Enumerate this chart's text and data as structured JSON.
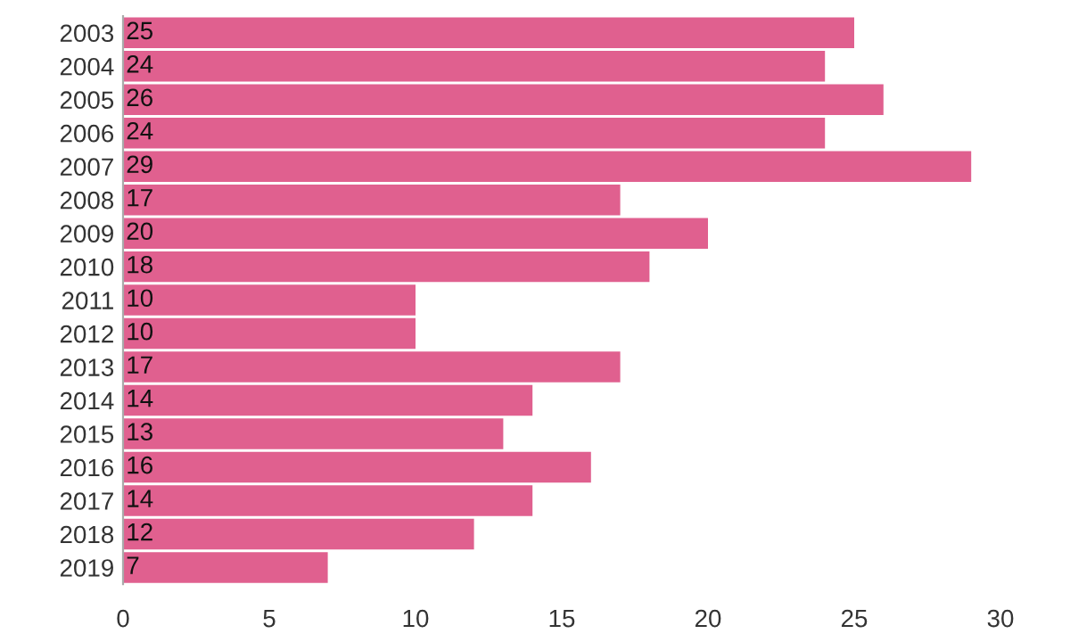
{
  "chart_data": {
    "type": "bar",
    "orientation": "horizontal",
    "categories": [
      "2003",
      "2004",
      "2005",
      "2006",
      "2007",
      "2008",
      "2009",
      "2010",
      "2011",
      "2012",
      "2013",
      "2014",
      "2015",
      "2016",
      "2017",
      "2018",
      "2019"
    ],
    "values": [
      25,
      24,
      26,
      24,
      29,
      17,
      20,
      18,
      10,
      10,
      17,
      14,
      13,
      16,
      14,
      12,
      7
    ],
    "color": "#e0608f",
    "data_labels": true,
    "xlim": [
      0,
      30
    ],
    "xticks": [
      0,
      5,
      10,
      15,
      20,
      25,
      30
    ],
    "grid": false,
    "legend": false
  }
}
